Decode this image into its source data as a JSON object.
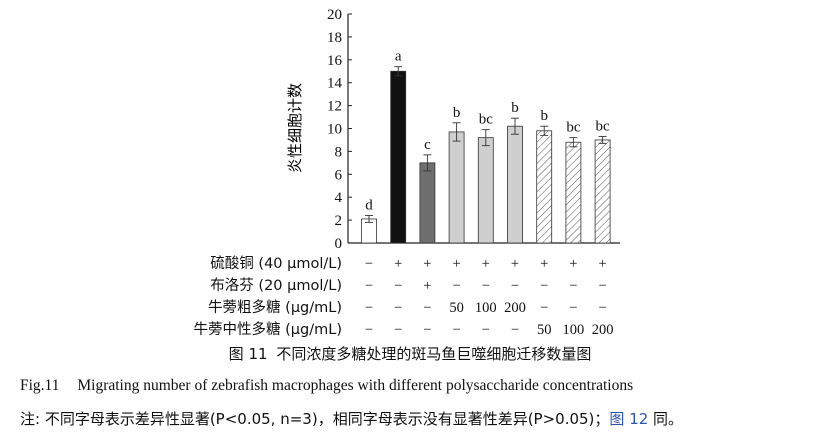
{
  "chart_data": {
    "type": "bar",
    "ylabel": "炎性细胞计数",
    "ylim": [
      0,
      20
    ],
    "yticks": [
      0,
      2,
      4,
      6,
      8,
      10,
      12,
      14,
      16,
      18,
      20
    ],
    "bars": [
      {
        "value": 2.1,
        "error": 0.3,
        "letter": "d",
        "fill": "white"
      },
      {
        "value": 15.0,
        "error": 0.4,
        "letter": "a",
        "fill": "black"
      },
      {
        "value": 7.0,
        "error": 0.7,
        "letter": "c",
        "fill": "darkgray"
      },
      {
        "value": 9.7,
        "error": 0.8,
        "letter": "b",
        "fill": "lightgray"
      },
      {
        "value": 9.2,
        "error": 0.7,
        "letter": "bc",
        "fill": "lightgray"
      },
      {
        "value": 10.2,
        "error": 0.7,
        "letter": "b",
        "fill": "lightgray"
      },
      {
        "value": 9.8,
        "error": 0.4,
        "letter": "b",
        "fill": "hatched"
      },
      {
        "value": 8.8,
        "error": 0.4,
        "letter": "bc",
        "fill": "hatched"
      },
      {
        "value": 9.0,
        "error": 0.3,
        "letter": "bc",
        "fill": "hatched"
      }
    ],
    "treatments": [
      {
        "label": "硫酸铜 (40 μmol/L)",
        "values": [
          "−",
          "+",
          "+",
          "+",
          "+",
          "+",
          "+",
          "+",
          "+"
        ]
      },
      {
        "label": "布洛芬 (20 μmol/L)",
        "values": [
          "−",
          "−",
          "+",
          "−",
          "−",
          "−",
          "−",
          "−",
          "−"
        ]
      },
      {
        "label": "牛蒡粗多糖 (μg/mL)",
        "values": [
          "−",
          "−",
          "−",
          "50",
          "100",
          "200",
          "−",
          "−",
          "−"
        ]
      },
      {
        "label": "牛蒡中性多糖 (μg/mL)",
        "values": [
          "−",
          "−",
          "−",
          "−",
          "−",
          "−",
          "50",
          "100",
          "200"
        ]
      }
    ]
  },
  "colors": {
    "white": "#ffffff",
    "black": "#111111",
    "darkgray": "#6e6e6e",
    "lightgray": "#cfcfcf",
    "axis": "#222222"
  },
  "caption": {
    "cn_number": "图 11",
    "cn_title": "不同浓度多糖处理的斑马鱼巨噬细胞迁移数量图",
    "en_number": "Fig.11",
    "en_title": "Migrating number of zebrafish macrophages with different polysaccharide concentrations"
  },
  "note": {
    "text": "注: 不同字母表示差异性显著(P<0.05, n=3)，相同字母表示没有显著性差异(P>0.05)；",
    "link": "图 12",
    "tail": " 同。"
  }
}
